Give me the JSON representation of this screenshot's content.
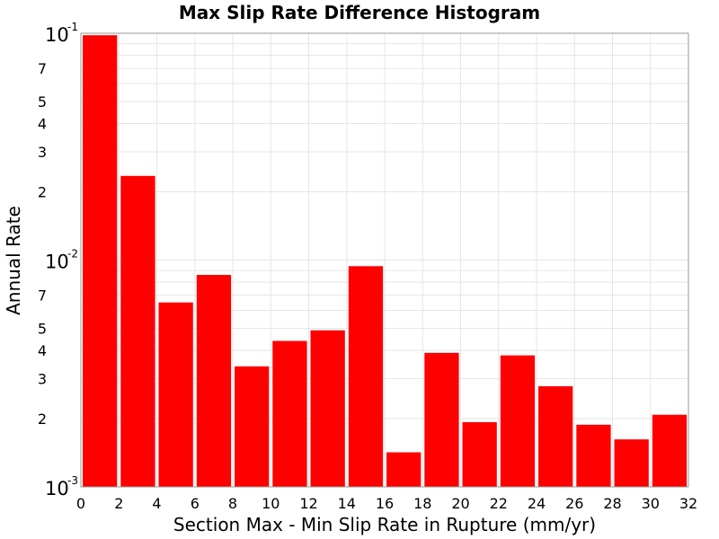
{
  "chart_data": {
    "type": "bar",
    "title": "Max Slip Rate Difference Histogram",
    "xlabel": "Section Max - Min Slip Rate in Rupture (mm/yr)",
    "ylabel": "Annual Rate",
    "xlim": [
      0,
      32
    ],
    "ylim": [
      0.001,
      0.1
    ],
    "yscale": "log",
    "grid": true,
    "bar_color": "#ff0000",
    "bin_width": 2,
    "bin_starts": [
      0,
      2,
      4,
      6,
      8,
      10,
      12,
      14,
      16,
      18,
      20,
      22,
      24,
      26,
      28,
      30
    ],
    "values": [
      0.098,
      0.0235,
      0.0065,
      0.0086,
      0.0034,
      0.0044,
      0.0049,
      0.0094,
      0.00142,
      0.0039,
      0.00193,
      0.0038,
      0.00278,
      0.00188,
      0.00162,
      0.00208
    ],
    "x_ticks": [
      "0",
      "2",
      "4",
      "6",
      "8",
      "10",
      "12",
      "14",
      "16",
      "18",
      "20",
      "22",
      "24",
      "26",
      "28",
      "30",
      "32"
    ],
    "y_major_ticks": [
      {
        "value": 0.1,
        "base": "10",
        "exp": "-1"
      },
      {
        "value": 0.01,
        "base": "10",
        "exp": "-2"
      },
      {
        "value": 0.001,
        "base": "10",
        "exp": "-3"
      }
    ],
    "y_minor_tick_labels": [
      {
        "value": 0.07,
        "label": "7"
      },
      {
        "value": 0.05,
        "label": "5"
      },
      {
        "value": 0.04,
        "label": "4"
      },
      {
        "value": 0.03,
        "label": "3"
      },
      {
        "value": 0.02,
        "label": "2"
      },
      {
        "value": 0.007,
        "label": "7"
      },
      {
        "value": 0.005,
        "label": "5"
      },
      {
        "value": 0.004,
        "label": "4"
      },
      {
        "value": 0.003,
        "label": "3"
      },
      {
        "value": 0.002,
        "label": "2"
      }
    ]
  }
}
